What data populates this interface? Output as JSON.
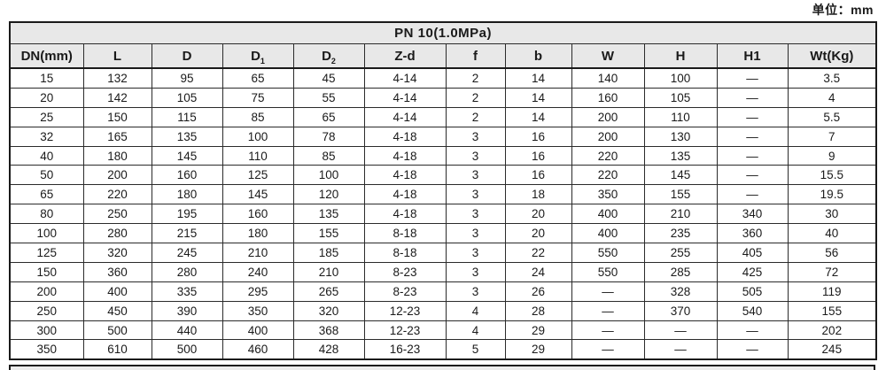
{
  "unit_label": "单位：mm",
  "colors": {
    "header_background": "#e8e8e8",
    "border": "#1a1a1a",
    "text": "#1a1a1a"
  },
  "table": {
    "title": "PN 10(1.0MPa)",
    "columns": [
      {
        "key": "dn",
        "label": "DN(mm)",
        "sub": ""
      },
      {
        "key": "l",
        "label": "L",
        "sub": ""
      },
      {
        "key": "d",
        "label": "D",
        "sub": ""
      },
      {
        "key": "d1",
        "label": "D",
        "sub": "1"
      },
      {
        "key": "d2",
        "label": "D",
        "sub": "2"
      },
      {
        "key": "zd",
        "label": "Z-d",
        "sub": ""
      },
      {
        "key": "f",
        "label": "f",
        "sub": ""
      },
      {
        "key": "b",
        "label": "b",
        "sub": ""
      },
      {
        "key": "w",
        "label": "W",
        "sub": ""
      },
      {
        "key": "h",
        "label": "H",
        "sub": ""
      },
      {
        "key": "h1",
        "label": "H1",
        "sub": ""
      },
      {
        "key": "wt",
        "label": "Wt(Kg)",
        "sub": ""
      }
    ],
    "rows": [
      [
        "15",
        "132",
        "95",
        "65",
        "45",
        "4-14",
        "2",
        "14",
        "140",
        "100",
        "—",
        "3.5"
      ],
      [
        "20",
        "142",
        "105",
        "75",
        "55",
        "4-14",
        "2",
        "14",
        "160",
        "105",
        "—",
        "4"
      ],
      [
        "25",
        "150",
        "115",
        "85",
        "65",
        "4-14",
        "2",
        "14",
        "200",
        "110",
        "—",
        "5.5"
      ],
      [
        "32",
        "165",
        "135",
        "100",
        "78",
        "4-18",
        "3",
        "16",
        "200",
        "130",
        "—",
        "7"
      ],
      [
        "40",
        "180",
        "145",
        "110",
        "85",
        "4-18",
        "3",
        "16",
        "220",
        "135",
        "—",
        "9"
      ],
      [
        "50",
        "200",
        "160",
        "125",
        "100",
        "4-18",
        "3",
        "16",
        "220",
        "145",
        "—",
        "15.5"
      ],
      [
        "65",
        "220",
        "180",
        "145",
        "120",
        "4-18",
        "3",
        "18",
        "350",
        "155",
        "—",
        "19.5"
      ],
      [
        "80",
        "250",
        "195",
        "160",
        "135",
        "4-18",
        "3",
        "20",
        "400",
        "210",
        "340",
        "30"
      ],
      [
        "100",
        "280",
        "215",
        "180",
        "155",
        "8-18",
        "3",
        "20",
        "400",
        "235",
        "360",
        "40"
      ],
      [
        "125",
        "320",
        "245",
        "210",
        "185",
        "8-18",
        "3",
        "22",
        "550",
        "255",
        "405",
        "56"
      ],
      [
        "150",
        "360",
        "280",
        "240",
        "210",
        "8-23",
        "3",
        "24",
        "550",
        "285",
        "425",
        "72"
      ],
      [
        "200",
        "400",
        "335",
        "295",
        "265",
        "8-23",
        "3",
        "26",
        "—",
        "328",
        "505",
        "119"
      ],
      [
        "250",
        "450",
        "390",
        "350",
        "320",
        "12-23",
        "4",
        "28",
        "—",
        "370",
        "540",
        "155"
      ],
      [
        "300",
        "500",
        "440",
        "400",
        "368",
        "12-23",
        "4",
        "29",
        "—",
        "—",
        "—",
        "202"
      ],
      [
        "350",
        "610",
        "500",
        "460",
        "428",
        "16-23",
        "5",
        "29",
        "—",
        "—",
        "—",
        "245"
      ]
    ]
  }
}
